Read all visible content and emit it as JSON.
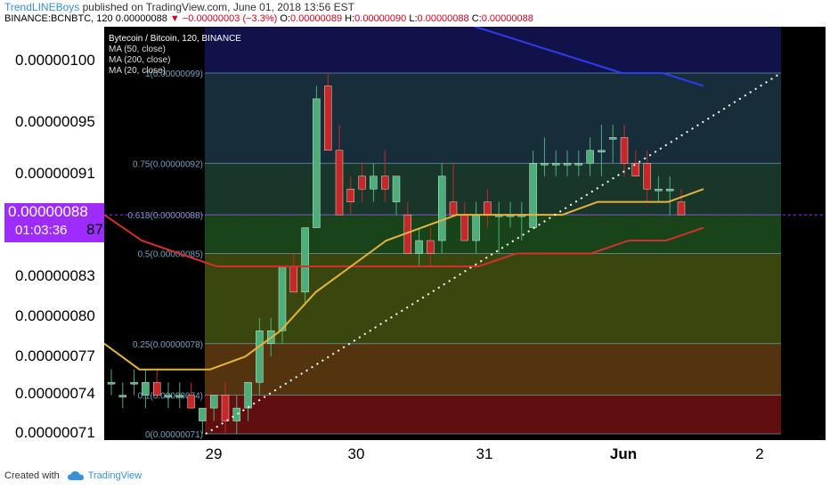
{
  "header": {
    "author": "TrendLINEBoys",
    "published_text": "published on TradingView.com, June 01, 2018 13:56 EST",
    "symbol": "BINANCE:BCNBTC, 120",
    "last": "0.00000088",
    "change": "−0.00000003 (−3.3%)",
    "ohlc": {
      "o_label": "O:",
      "o": "0.00000089",
      "h_label": "H:",
      "h": "0.00000090",
      "l_label": "L:",
      "l": "0.00000088",
      "c_label": "C:",
      "c": "0.00000088"
    }
  },
  "legend": {
    "title": "Bytecoin / Bitcoin, 120, BINANCE",
    "ma50": "MA (50, close)",
    "ma200": "MA (200, close)",
    "ma20": "MA (20, close)"
  },
  "price_badge": {
    "price": "0.00000088",
    "countdown": "01:03:36",
    "partial_tick": "87"
  },
  "footer": {
    "created_with": "Created with",
    "brand": "TradingView"
  },
  "colors": {
    "ma20": "#e6b43c",
    "ma50": "#d32f2f",
    "ma200": "#2d3cf0",
    "bull": "#4caf7a",
    "bear": "#c62828",
    "badge": "#9e2bff"
  },
  "chart_data": {
    "type": "candlestick",
    "title": "Bytecoin / Bitcoin, 120, BINANCE",
    "y_ticks": [
      "0.00000100",
      "0.00000095",
      "0.00000091",
      "0.00000087",
      "0.00000083",
      "0.00000080",
      "0.00000077",
      "0.00000074",
      "0.00000071"
    ],
    "x_ticks": [
      "29",
      "30",
      "31",
      "Jun",
      "2"
    ],
    "ylim": [
      6.9e-07,
      1.03e-06
    ],
    "fib_levels": [
      {
        "ratio": "0",
        "label": "0(0.00000071)",
        "price": 7.1e-07,
        "fill": "#6b1010"
      },
      {
        "ratio": "0.1",
        "label": "0.1(0.00000074)",
        "price": 7.4e-07,
        "fill": "#5c3a10"
      },
      {
        "ratio": "0.25",
        "label": "0.25(0.00000078)",
        "price": 7.8e-07,
        "fill": "#3f4f10"
      },
      {
        "ratio": "0.5",
        "label": "0.5(0.00000085)",
        "price": 8.5e-07,
        "fill": "#1c4a1c"
      },
      {
        "ratio": "0.618",
        "label": "0.618(0.00000088)",
        "price": 8.8e-07,
        "fill": "#1c3c30"
      },
      {
        "ratio": "0.75",
        "label": "0.75(0.00000092)",
        "price": 9.2e-07,
        "fill": "#1a3340"
      },
      {
        "ratio": "1",
        "label": "1(0.00000099)",
        "price": 9.9e-07,
        "fill": "#262626"
      }
    ],
    "candles": [
      [
        7.5e-07,
        7.6e-07,
        7.4e-07,
        7.5e-07
      ],
      [
        7.4e-07,
        7.5e-07,
        7.3e-07,
        7.4e-07
      ],
      [
        7.5e-07,
        7.6e-07,
        7.4e-07,
        7.5e-07
      ],
      [
        7.4e-07,
        7.6e-07,
        7.3e-07,
        7.5e-07
      ],
      [
        7.5e-07,
        7.6e-07,
        7.4e-07,
        7.4e-07
      ],
      [
        7.4e-07,
        7.5e-07,
        7.3e-07,
        7.4e-07
      ],
      [
        7.4e-07,
        7.5e-07,
        7.3e-07,
        7.4e-07
      ],
      [
        7.4e-07,
        7.5e-07,
        7.3e-07,
        7.3e-07
      ],
      [
        7.2e-07,
        7.3e-07,
        7.1e-07,
        7.3e-07
      ],
      [
        7.3e-07,
        7.4e-07,
        7.2e-07,
        7.4e-07
      ],
      [
        7.4e-07,
        7.5e-07,
        7.1e-07,
        7.2e-07
      ],
      [
        7.2e-07,
        7.4e-07,
        7.1e-07,
        7.3e-07
      ],
      [
        7.3e-07,
        7.5e-07,
        7.2e-07,
        7.5e-07
      ],
      [
        7.5e-07,
        8e-07,
        7.4e-07,
        7.9e-07
      ],
      [
        7.8e-07,
        8e-07,
        7.7e-07,
        7.9e-07
      ],
      [
        7.9e-07,
        8.4e-07,
        7.8e-07,
        8.4e-07
      ],
      [
        8.4e-07,
        8.5e-07,
        8.2e-07,
        8.2e-07
      ],
      [
        8.2e-07,
        8.7e-07,
        8.1e-07,
        8.7e-07
      ],
      [
        8.7e-07,
        9.8e-07,
        8.7e-07,
        9.7e-07
      ],
      [
        9.8e-07,
        9.9e-07,
        9.3e-07,
        9.3e-07
      ],
      [
        9.3e-07,
        9.5e-07,
        8.8e-07,
        8.8e-07
      ],
      [
        9e-07,
        9.1e-07,
        8.8e-07,
        8.9e-07
      ],
      [
        9.1e-07,
        9.2e-07,
        8.9e-07,
        9e-07
      ],
      [
        9e-07,
        9.2e-07,
        8.9e-07,
        9.1e-07
      ],
      [
        9.1e-07,
        9.3e-07,
        8.9e-07,
        9e-07
      ],
      [
        8.9e-07,
        9.1e-07,
        8.8e-07,
        9.1e-07
      ],
      [
        8.8e-07,
        8.9e-07,
        8.5e-07,
        8.5e-07
      ],
      [
        8.5e-07,
        8.7e-07,
        8.4e-07,
        8.6e-07
      ],
      [
        8.6e-07,
        8.7e-07,
        8.4e-07,
        8.5e-07
      ],
      [
        8.6e-07,
        9.2e-07,
        8.5e-07,
        9.1e-07
      ],
      [
        8.9e-07,
        9.2e-07,
        8.8e-07,
        8.8e-07
      ],
      [
        8.8e-07,
        8.9e-07,
        8.6e-07,
        8.6e-07
      ],
      [
        8.6e-07,
        8.9e-07,
        8.5e-07,
        8.8e-07
      ],
      [
        8.9e-07,
        9e-07,
        8.7e-07,
        8.8e-07
      ],
      [
        8.8e-07,
        8.9e-07,
        8.5e-07,
        8.8e-07
      ],
      [
        8.8e-07,
        8.9e-07,
        8.7e-07,
        8.8e-07
      ],
      [
        8.8e-07,
        8.9e-07,
        8.6e-07,
        8.8e-07
      ],
      [
        8.7e-07,
        9.3e-07,
        8.7e-07,
        9.2e-07
      ],
      [
        9.2e-07,
        9.4e-07,
        9.1e-07,
        9.2e-07
      ],
      [
        9.2e-07,
        9.3e-07,
        9.1e-07,
        9.2e-07
      ],
      [
        9.2e-07,
        9.3e-07,
        9.1e-07,
        9.2e-07
      ],
      [
        9.2e-07,
        9.3e-07,
        9.1e-07,
        9.2e-07
      ],
      [
        9.2e-07,
        9.4e-07,
        9.1e-07,
        9.3e-07
      ],
      [
        9.3e-07,
        9.5e-07,
        9.1e-07,
        9.3e-07
      ],
      [
        9.4e-07,
        9.5e-07,
        9.2e-07,
        9.4e-07
      ],
      [
        9.4e-07,
        9.5e-07,
        9.1e-07,
        9.2e-07
      ],
      [
        9.2e-07,
        9.3e-07,
        9.1e-07,
        9.1e-07
      ],
      [
        9.2e-07,
        9.3e-07,
        8.9e-07,
        9e-07
      ],
      [
        9e-07,
        9.1e-07,
        8.9e-07,
        9e-07
      ],
      [
        9e-07,
        9.1e-07,
        8.8e-07,
        9e-07
      ],
      [
        8.9e-07,
        9e-07,
        8.8e-07,
        8.8e-07
      ]
    ],
    "ma20": [
      7.8e-07,
      7.6e-07,
      7.6e-07,
      7.6e-07,
      7.7e-07,
      7.9e-07,
      8.2e-07,
      8.4e-07,
      8.6e-07,
      8.7e-07,
      8.8e-07,
      8.8e-07,
      8.8e-07,
      8.8e-07,
      8.9e-07,
      8.9e-07,
      8.9e-07,
      9e-07
    ],
    "ma50": [
      8.8e-07,
      8.6e-07,
      8.5e-07,
      8.4e-07,
      8.4e-07,
      8.4e-07,
      8.4e-07,
      8.4e-07,
      8.4e-07,
      8.4e-07,
      8.4e-07,
      8.5e-07,
      8.5e-07,
      8.5e-07,
      8.6e-07,
      8.6e-07,
      8.7e-07
    ],
    "ma200": [
      1.03e-06,
      1.02e-06,
      1.01e-06,
      1e-06,
      9.9e-07,
      9.9e-07,
      9.8e-07
    ],
    "trendline": [
      [
        7.1e-07
      ],
      [
        9.9e-07
      ]
    ]
  }
}
